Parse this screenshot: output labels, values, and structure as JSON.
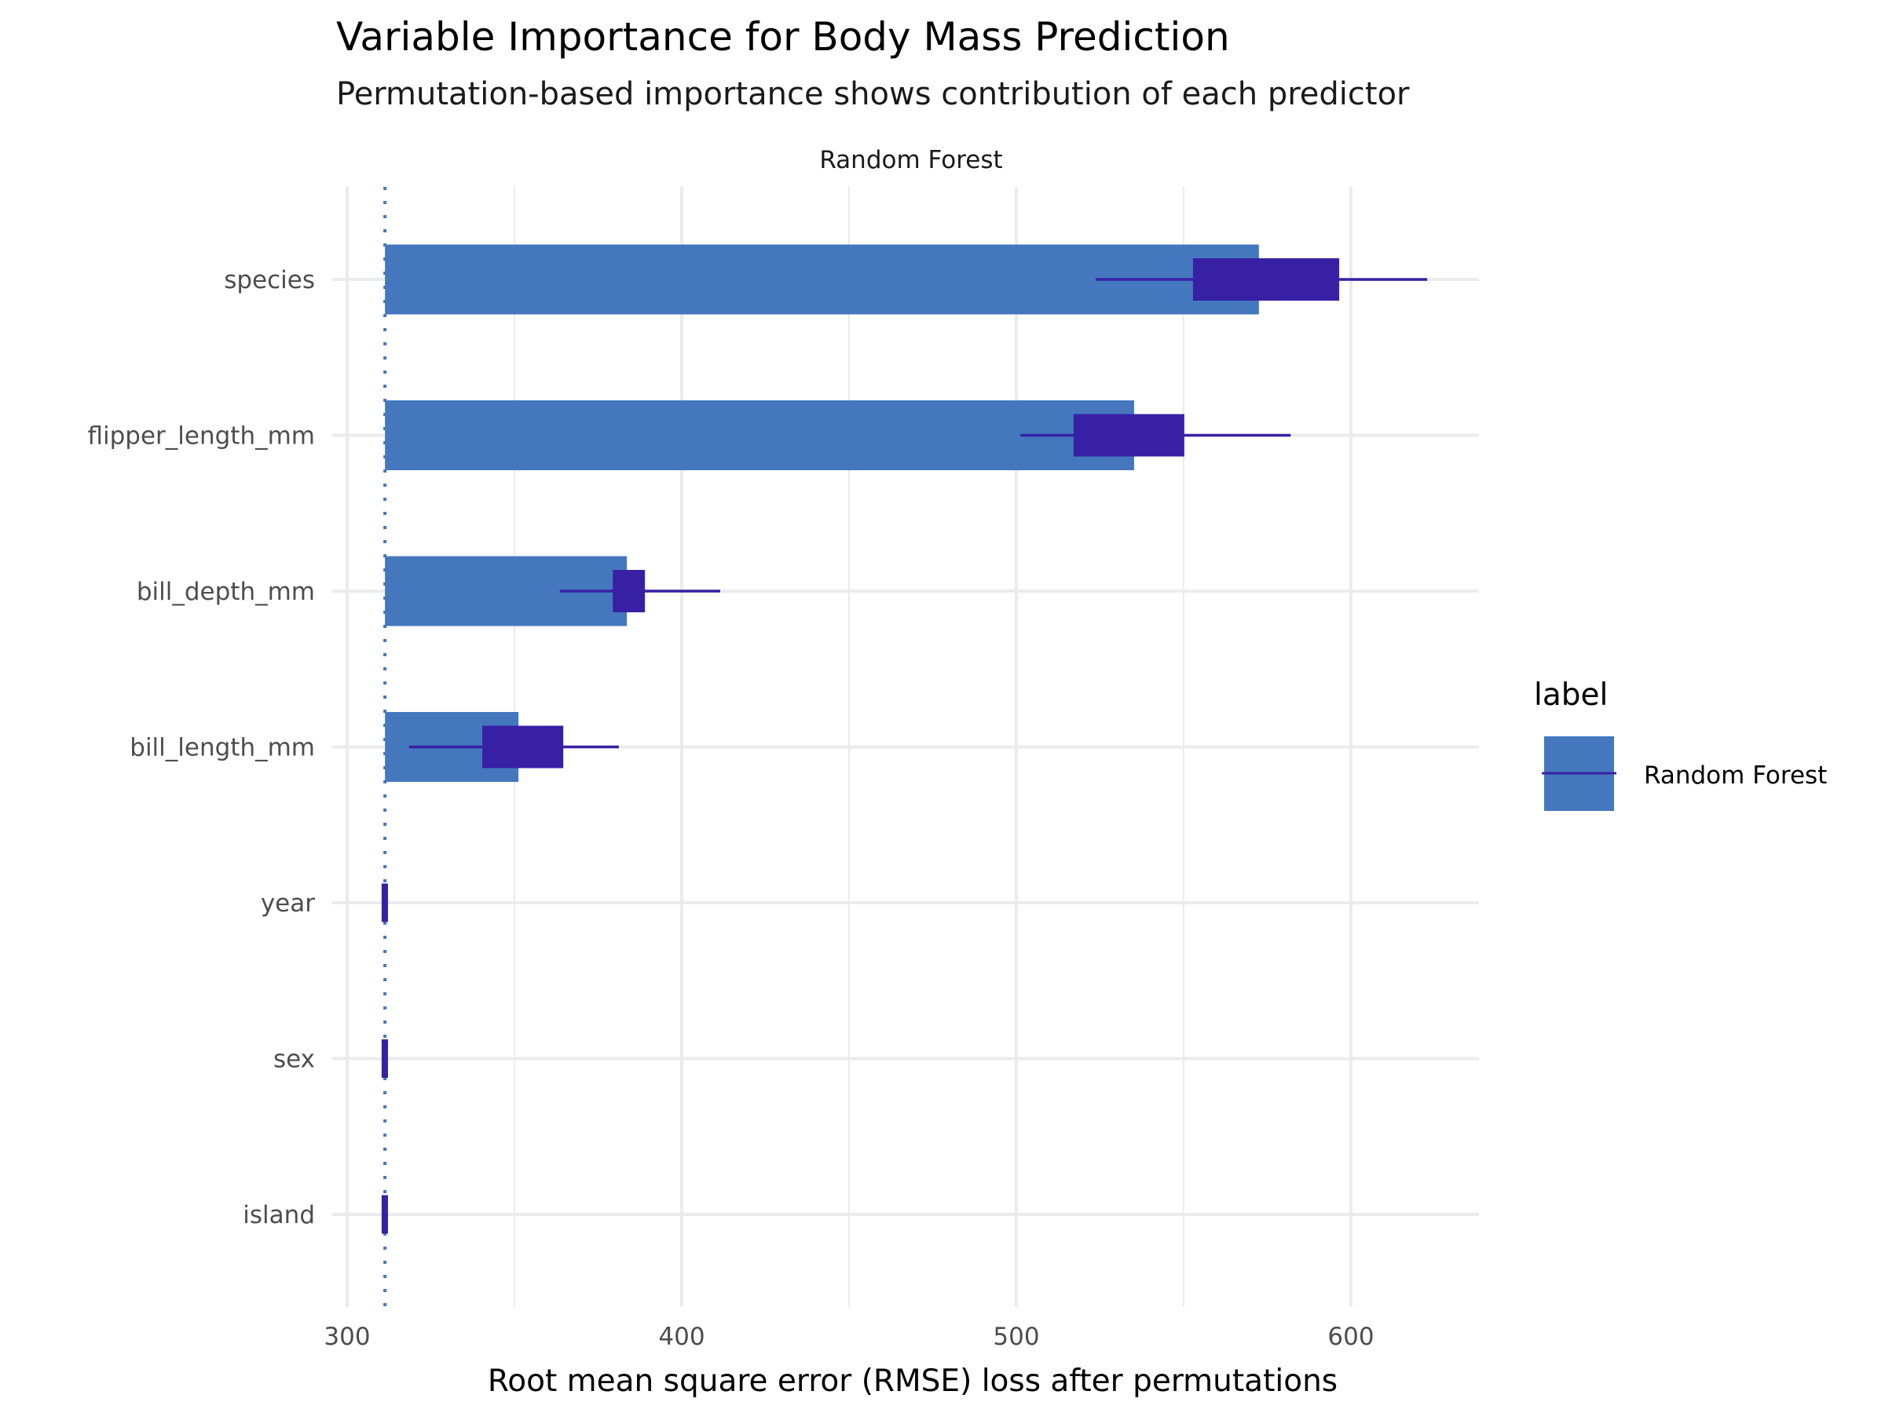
{
  "chart_data": {
    "type": "bar",
    "title": "Variable Importance for Body Mass Prediction",
    "subtitle": "Permutation-based importance shows contribution of each predictor",
    "facet_label": "Random Forest",
    "xlabel": "Root mean square error (RMSE) loss after permutations",
    "ylabel": "",
    "xlim": [
      288,
      640
    ],
    "x_ticks": [
      300,
      400,
      500,
      600
    ],
    "x_tick_labels": [
      "300",
      "400",
      "500",
      "600"
    ],
    "x_minor_gridlines": [
      350,
      450,
      550
    ],
    "grid": true,
    "baseline": 311.3,
    "baseline_style": "dotted",
    "categories": [
      "species",
      "flipper_length_mm",
      "bill_depth_mm",
      "bill_length_mm",
      "year",
      "sex",
      "island"
    ],
    "series": [
      {
        "name": "Random Forest",
        "values": [
          572.5,
          535.2,
          383.6,
          351.2,
          311.3,
          311.3,
          311.3
        ],
        "box_low": [
          552.8,
          517.1,
          379.4,
          340.4,
          310.3,
          310.3,
          310.3
        ],
        "box_high": [
          596.5,
          550.2,
          389.0,
          364.6,
          312.2,
          312.2,
          312.2
        ],
        "whisker_low": [
          523.7,
          501.2,
          363.6,
          318.5,
          310.3,
          310.3,
          310.3
        ],
        "whisker_high": [
          622.8,
          582.0,
          411.5,
          381.2,
          312.2,
          312.2,
          312.2
        ]
      }
    ],
    "legend": {
      "title": "label",
      "position": "right",
      "entries": [
        "Random Forest"
      ]
    },
    "colors": {
      "bar": "#4477BE",
      "box": "#3820A5",
      "whisker": "#3820A5",
      "baseline": "#4477BE",
      "grid": "#EBEBEB"
    }
  }
}
